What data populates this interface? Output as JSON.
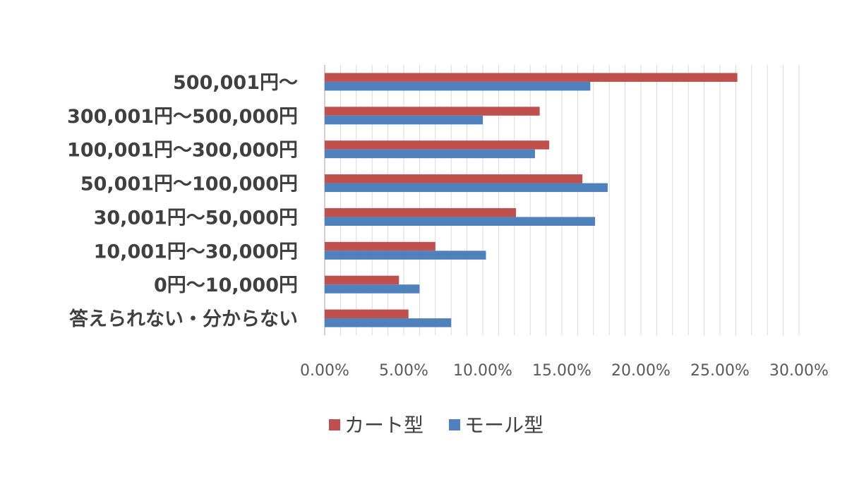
{
  "chart_data": {
    "type": "bar",
    "orientation": "horizontal",
    "title": "",
    "xlabel": "",
    "ylabel": "",
    "categories": [
      "500,001円～",
      "300,001円～500,000円",
      "100,001円～300,000円",
      "50,001円～100,000円",
      "30,001円～50,000円",
      "10,001円～30,000円",
      "0円～10,000円",
      "答えられない・分からない"
    ],
    "series": [
      {
        "name": "カート型",
        "color": "#C0504D",
        "values": [
          26.1,
          13.6,
          14.2,
          16.3,
          12.1,
          7.0,
          4.7,
          5.3
        ]
      },
      {
        "name": "モール型",
        "color": "#4F81BD",
        "values": [
          16.8,
          10.0,
          13.3,
          17.9,
          17.1,
          10.2,
          6.0,
          8.0
        ]
      }
    ],
    "xlim": [
      0,
      30
    ],
    "x_ticks": [
      0,
      5,
      10,
      15,
      20,
      25,
      30
    ],
    "x_tick_labels": [
      "0.00%",
      "5.00%",
      "10.00%",
      "15.00%",
      "20.00%",
      "25.00%",
      "30.00%"
    ],
    "grid": true,
    "legend_position": "bottom"
  }
}
